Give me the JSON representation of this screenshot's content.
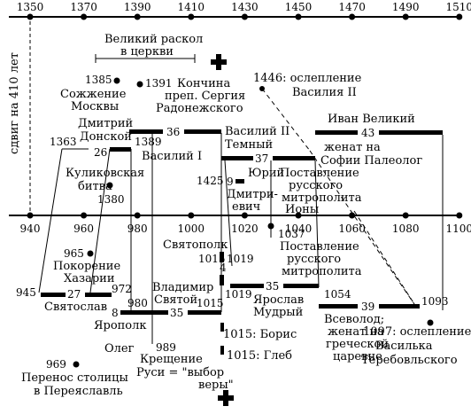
{
  "top_axis": {
    "ticks": [
      "1350",
      "1370",
      "1390",
      "1410",
      "1430",
      "1450",
      "1470",
      "1490",
      "1510"
    ]
  },
  "bottom_axis": {
    "ticks": [
      "940",
      "960",
      "980",
      "1000",
      "1020",
      "1040",
      "1060",
      "1080",
      "1100"
    ]
  },
  "shift_label": "сдвиг на 410 лет",
  "labels": {
    "schism_1": "Великий раскол",
    "schism_2": "в церкви",
    "moscow_burn_year": "1385",
    "moscow_burn_1": "Сожжение",
    "moscow_burn_2": "Москвы",
    "sergius_year": "1391",
    "sergius_1": "Кончина",
    "sergius_2": "преп. Сергия",
    "sergius_3": "Радонежского",
    "blinding_1446": "1446: ослепление",
    "blinding_1446_2": "Василия II",
    "dmitry_1": "Дмитрий",
    "dmitry_2": "Донской",
    "y1363": "1363",
    "n26": "26",
    "y1389": "1389",
    "n36": "36",
    "vasily1": "Василий I",
    "vasily2_1": "Василий II",
    "vasily2_2": "Темный",
    "ivan": "Иван Великий",
    "n43": "43",
    "married_sofia_1": "женат на",
    "married_sofia_2": "Софии Палеолог",
    "n37": "37",
    "yuri": "Юрий",
    "y1425": "1425",
    "n9": "9",
    "dmitrievich_1": "Дмитри-",
    "dmitrievich_2": "евич",
    "kulikovo_1": "Куликовская",
    "kulikovo_2": "битва",
    "y1380": "1380",
    "installed_jonah_1": "Поставление",
    "installed_jonah_2": "русского",
    "installed_jonah_3": "митрополита",
    "installed_jonah_4": "Ионы",
    "svyatopolk": "Святополк",
    "y1037": "1037",
    "installed_2_1": "Поставление",
    "installed_2_2": "русского",
    "installed_2_3": "митрополита",
    "khazaria_year": "965",
    "khazaria_1": "Покорение",
    "khazaria_2": "Хазарии",
    "y1015a": "1015",
    "n4": "4",
    "y1019a": "1019",
    "y945": "945",
    "n27": "27",
    "y972": "972",
    "svyatoslav": "Святослав",
    "vladimir_1": "Владимир",
    "vladimir_2": "Святой",
    "y980": "980",
    "y1015b": "1015",
    "y1019b": "1019",
    "n35a": "35",
    "yaroslav_1": "Ярослав",
    "yaroslav_2": "Мудрый",
    "y1054": "1054",
    "y1093": "1093",
    "vsevolod_1": "Всеволод;",
    "vsevolod_2": "женат на",
    "vsevolod_3": "греческой",
    "vsevolod_4": "царевне",
    "n39": "39",
    "n8": "8",
    "n35b": "35",
    "yaropolk": "Ярополк",
    "oleg": "Олег",
    "y989": "989",
    "baptism_1": "Крещение",
    "baptism_2": "Руси = \"выбор",
    "baptism_3": "веры\"",
    "boris": "1015: Борис",
    "gleb": "1015: Глеб",
    "capital_year": "969",
    "capital_1": "Перенос столицы",
    "capital_2": "в Переяславль",
    "blinding_1097_1": "1097: ослепление",
    "blinding_1097_2": "Василька",
    "blinding_1097_3": "Теребовльского"
  }
}
